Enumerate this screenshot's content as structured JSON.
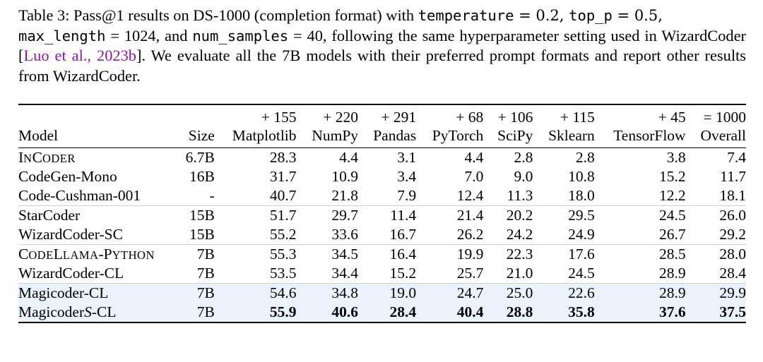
{
  "caption": {
    "label": "Table 3:",
    "part1": " Pass@1 results on DS-1000 (completion format) with ",
    "code_temperature": "temperature",
    "eq1": " = 0.2, ",
    "code_top_p": "top_p",
    "eq2": " = 0.5,",
    "code_max_length": "max_length",
    "eq3": " = 1024, and ",
    "code_num_samples": "num_samples",
    "eq4": " = 40, following the same hyperparameter setting used in WizardCoder [",
    "citation": "Luo et al., 2023b",
    "part2": "]. We evaluate all the 7B models with their preferred prompt formats and report other results from WizardCoder."
  },
  "table": {
    "header_counts": [
      "",
      "",
      "+ 155",
      "+ 220",
      "+ 291",
      "+ 68",
      "+ 106",
      "+ 115",
      "+ 45",
      "= 1000"
    ],
    "header_labels": [
      "Model",
      "Size",
      "Matplotlib",
      "NumPy",
      "Pandas",
      "PyTorch",
      "SciPy",
      "Sklearn",
      "TensorFlow",
      "Overall"
    ],
    "rows": [
      {
        "model_sc": [
          "I",
          "N",
          "C",
          "ODER"
        ],
        "size": "6.7B",
        "values": [
          "28.3",
          "4.4",
          "3.1",
          "4.4",
          "2.8",
          "2.8",
          "3.8",
          "7.4"
        ]
      },
      {
        "model": "CodeGen-Mono",
        "size": "16B",
        "values": [
          "31.7",
          "10.9",
          "3.4",
          "7.0",
          "9.0",
          "10.8",
          "15.2",
          "11.7"
        ]
      },
      {
        "model": "Code-Cushman-001",
        "size": "-",
        "values": [
          "40.7",
          "21.8",
          "7.9",
          "12.4",
          "11.3",
          "18.0",
          "12.2",
          "18.1"
        ]
      },
      {
        "model": "StarCoder",
        "size": "15B",
        "values": [
          "51.7",
          "29.7",
          "11.4",
          "21.4",
          "20.2",
          "29.5",
          "24.5",
          "26.0"
        ]
      },
      {
        "model": "WizardCoder-SC",
        "size": "15B",
        "values": [
          "55.2",
          "33.6",
          "16.7",
          "26.2",
          "24.2",
          "24.9",
          "26.7",
          "29.2"
        ]
      },
      {
        "model_sc": [
          "C",
          "ODE",
          "L",
          "LAMA",
          "-P",
          "YTHON"
        ],
        "size": "7B",
        "values": [
          "55.3",
          "34.5",
          "16.4",
          "19.9",
          "22.3",
          "17.6",
          "28.5",
          "28.0"
        ]
      },
      {
        "model": "WizardCoder-CL",
        "size": "7B",
        "values": [
          "53.5",
          "34.4",
          "15.2",
          "25.7",
          "21.0",
          "24.5",
          "28.9",
          "28.4"
        ]
      },
      {
        "model": "Magicoder-CL",
        "size": "7B",
        "values": [
          "54.6",
          "34.8",
          "19.0",
          "24.7",
          "25.0",
          "22.6",
          "28.9",
          "29.9"
        ]
      },
      {
        "model_pre": "Magicoder",
        "model_s": "S",
        "model_post": "-CL",
        "size": "7B",
        "values": [
          "55.9",
          "40.6",
          "28.4",
          "40.4",
          "28.8",
          "35.8",
          "37.6",
          "37.5"
        ]
      }
    ]
  },
  "colors": {
    "citation": "#8a1aa0",
    "highlight_rows": "#eaf2fb"
  }
}
